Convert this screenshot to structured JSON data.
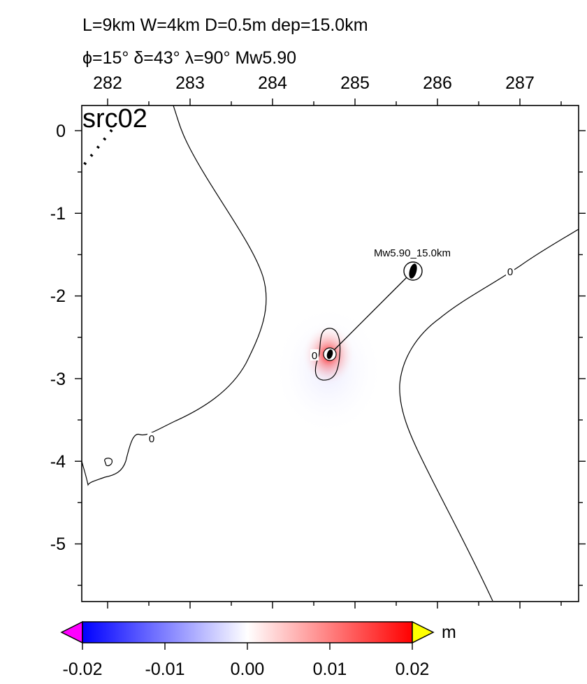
{
  "header": {
    "line1": "L=9km W=4km D=0.5m dep=15.0km",
    "line2": "ϕ=15° δ=43° λ=90° Mw5.90"
  },
  "map": {
    "panel_label": "src02",
    "x_ticks": [
      "282",
      "283",
      "284",
      "285",
      "286",
      "287"
    ],
    "y_ticks": [
      "0",
      "-1",
      "-2",
      "-3",
      "-4",
      "-5"
    ],
    "contour_labels": [
      "0",
      "0",
      "0"
    ],
    "event_label": "Mw5.90_15.0km",
    "colors": {
      "positive": "#ff0000",
      "negative": "#0000ff",
      "contour": "#000000"
    }
  },
  "colorbar": {
    "ticks": [
      "-0.02",
      "-0.01",
      "0.00",
      "0.01",
      "0.02"
    ],
    "unit": "m",
    "colors": {
      "low_extend": "#ff00ff",
      "min": "#0000ff",
      "mid": "#ffffff",
      "max": "#ff0000",
      "high_extend": "#ffff00"
    }
  }
}
